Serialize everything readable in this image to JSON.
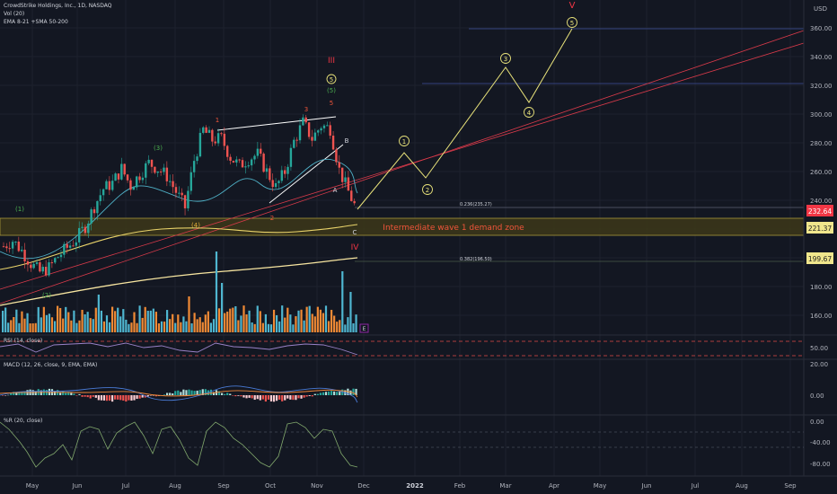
{
  "header": {
    "symbol": "CrowdStrike Holdings, Inc., 1D, NASDAQ",
    "vol": "Vol (20)",
    "ema": "EMA 8-21 +SMA 50-200",
    "currency": "USD"
  },
  "price_axis": {
    "ticks": [
      "360.00",
      "340.00",
      "320.00",
      "300.00",
      "280.00",
      "260.00",
      "240.00",
      "180.00",
      "160.00"
    ],
    "last_price": "232.64",
    "zone_price": "221.37",
    "fib_price": "199.67",
    "colors": {
      "last": "#f23645",
      "zone": "#1e1e1e",
      "fib": "#1e1e1e"
    }
  },
  "time_axis": [
    "May",
    "Jun",
    "Jul",
    "Aug",
    "Sep",
    "Oct",
    "Nov",
    "Dec",
    "2022",
    "Feb",
    "Mar",
    "Apr",
    "May",
    "Jun",
    "Jul",
    "Aug",
    "Sep"
  ],
  "annotations": {
    "fib_236": "0.236(235.27)",
    "fib_382": "0.382(196.50)",
    "zone_text": "Intermediate wave 1 demand zone",
    "wave_V": "V",
    "wave_III": "III",
    "wave_IV": "IV",
    "wave_5_circle": "5",
    "wave_5_paren": "(5)",
    "minor": [
      "1",
      "3",
      "5",
      "2"
    ],
    "abc": [
      "A",
      "B",
      "C"
    ],
    "paren_waves": [
      "(1)",
      "(2)",
      "(3)",
      "(4)"
    ],
    "projection": [
      "1",
      "2",
      "3",
      "4",
      "5"
    ],
    "e_badge": "E"
  },
  "panes": {
    "rsi_label": "RSI (14, close)",
    "rsi_ticks": [
      "50.00"
    ],
    "macd_label": "MACD (12, 26, close, 9, EMA, EMA)",
    "macd_ticks": [
      "20.00",
      "0.00"
    ],
    "wr_label": "%R (20, close)",
    "wr_ticks": [
      "0.00",
      "-40.00",
      "-80.00"
    ]
  },
  "chart_data": {
    "type": "line",
    "series": [
      {
        "values": [
          208,
          212,
          205,
          196,
          190,
          193,
          201,
          207,
          213,
          222,
          236,
          248,
          252,
          262,
          250,
          258,
          266,
          262,
          257,
          246,
          235,
          268,
          289,
          282,
          283,
          270,
          264,
          269,
          272,
          260,
          249,
          260,
          281,
          294,
          283,
          292,
          290,
          261,
          246,
          232
        ]
      }
    ],
    "projection": [
      232,
      277,
      253,
      330,
      305,
      357
    ],
    "ylim": [
      150,
      370
    ]
  }
}
